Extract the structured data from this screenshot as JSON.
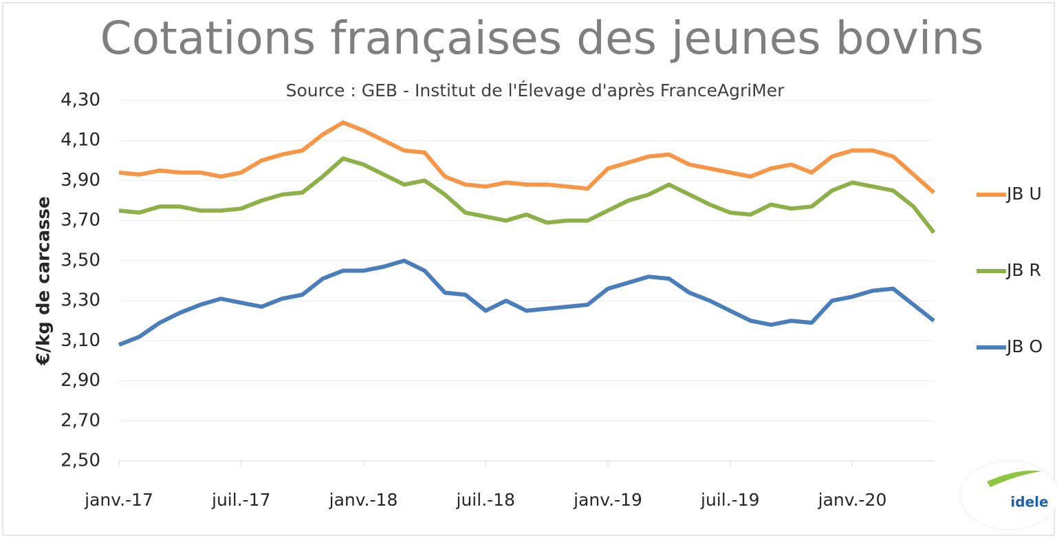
{
  "chart_data": {
    "type": "line",
    "title": "Cotations françaises des jeunes bovins",
    "subtitle": "Source : GEB - Institut de l'Élevage d'après FranceAgriMer",
    "y_label": "€/kg de carcasse",
    "x": [
      0,
      1,
      2,
      3,
      4,
      5,
      6,
      7,
      8,
      9,
      10,
      11,
      12,
      13,
      14,
      15,
      16,
      17,
      18,
      19,
      20,
      21,
      22,
      23,
      24,
      25,
      26,
      27,
      28,
      29,
      30,
      31,
      32,
      33,
      34,
      35,
      36,
      37,
      38,
      39,
      40
    ],
    "xlim": [
      0,
      40
    ],
    "xticks": [
      {
        "value": 0,
        "label": "janv.-17"
      },
      {
        "value": 6,
        "label": "juil.-17"
      },
      {
        "value": 12,
        "label": "janv.-18"
      },
      {
        "value": 18,
        "label": "juil.-18"
      },
      {
        "value": 24,
        "label": "janv.-19"
      },
      {
        "value": 30,
        "label": "juil.-19"
      },
      {
        "value": 36,
        "label": "janv.-20"
      }
    ],
    "ylim": [
      2.5,
      4.3
    ],
    "yticks": [
      {
        "value": 2.5,
        "label": "2,50"
      },
      {
        "value": 2.7,
        "label": "2,70"
      },
      {
        "value": 2.9,
        "label": "2,90"
      },
      {
        "value": 3.1,
        "label": "3,10"
      },
      {
        "value": 3.3,
        "label": "3,30"
      },
      {
        "value": 3.5,
        "label": "3,50"
      },
      {
        "value": 3.7,
        "label": "3,70"
      },
      {
        "value": 3.9,
        "label": "3,90"
      },
      {
        "value": 4.1,
        "label": "4,10"
      },
      {
        "value": 4.3,
        "label": "4,30"
      }
    ],
    "grid": true,
    "legend": "right",
    "series": [
      {
        "name": "JB U",
        "color": "#f79646",
        "values": [
          3.94,
          3.93,
          3.95,
          3.94,
          3.94,
          3.92,
          3.94,
          4.0,
          4.03,
          4.05,
          4.13,
          4.19,
          4.15,
          4.1,
          4.05,
          4.04,
          3.92,
          3.88,
          3.87,
          3.89,
          3.88,
          3.88,
          3.87,
          3.86,
          3.96,
          3.99,
          4.02,
          4.03,
          3.98,
          3.96,
          3.94,
          3.92,
          3.96,
          3.98,
          3.94,
          4.02,
          4.05,
          4.05,
          4.02,
          3.93,
          3.84
        ]
      },
      {
        "name": "JB R",
        "color": "#8db048",
        "values": [
          3.75,
          3.74,
          3.77,
          3.77,
          3.75,
          3.75,
          3.76,
          3.8,
          3.83,
          3.84,
          3.92,
          4.01,
          3.98,
          3.93,
          3.88,
          3.9,
          3.83,
          3.74,
          3.72,
          3.7,
          3.73,
          3.69,
          3.7,
          3.7,
          3.75,
          3.8,
          3.83,
          3.88,
          3.83,
          3.78,
          3.74,
          3.73,
          3.78,
          3.76,
          3.77,
          3.85,
          3.89,
          3.87,
          3.85,
          3.77,
          3.64
        ]
      },
      {
        "name": "JB O",
        "color": "#4a7ebb",
        "values": [
          3.08,
          3.12,
          3.19,
          3.24,
          3.28,
          3.31,
          3.29,
          3.27,
          3.31,
          3.33,
          3.41,
          3.45,
          3.45,
          3.47,
          3.5,
          3.45,
          3.34,
          3.33,
          3.25,
          3.3,
          3.25,
          3.26,
          3.27,
          3.28,
          3.36,
          3.39,
          3.42,
          3.41,
          3.34,
          3.3,
          3.25,
          3.2,
          3.18,
          3.2,
          3.19,
          3.3,
          3.32,
          3.35,
          3.36,
          3.28,
          3.2
        ]
      }
    ]
  },
  "logo": {
    "text": "idele"
  }
}
